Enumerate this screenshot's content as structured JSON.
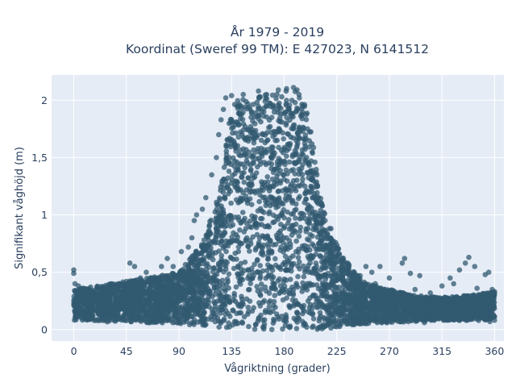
{
  "chart_data": {
    "type": "scatter",
    "title_line1": "År 1979 - 2019",
    "title_line2": "Koordinat (Sweref 99 TM): E 427023, N 6141512",
    "xlabel": "Vågriktning (grader)",
    "ylabel": "Signifikant våghöjd (m)",
    "xlim": [
      -19,
      368
    ],
    "ylim": [
      -0.1,
      2.22
    ],
    "grid": true,
    "x_ticks": [
      0,
      45,
      90,
      135,
      180,
      225,
      270,
      315,
      360
    ],
    "x_tick_labels": [
      "0",
      "45",
      "90",
      "135",
      "180",
      "225",
      "270",
      "315",
      "360"
    ],
    "y_ticks": [
      0,
      0.5,
      1,
      1.5,
      2
    ],
    "y_tick_labels": [
      "0",
      "0,5",
      "1",
      "1,5",
      "2"
    ],
    "marker_color": "#325a70",
    "plot_background": "#e5ecf6",
    "envelope": {
      "x": [
        0,
        45,
        90,
        110,
        125,
        130,
        135,
        140,
        150,
        160,
        170,
        180,
        190,
        195,
        200,
        205,
        210,
        215,
        220,
        225,
        230,
        240,
        250,
        270,
        290,
        315,
        340,
        360
      ],
      "upper": [
        0.35,
        0.42,
        0.5,
        0.75,
        1.2,
        1.6,
        1.95,
        2.02,
        2.03,
        2.05,
        2.07,
        2.08,
        2.1,
        2.05,
        1.9,
        1.6,
        1.25,
        1.0,
        0.85,
        0.75,
        0.65,
        0.5,
        0.4,
        0.35,
        0.3,
        0.28,
        0.3,
        0.33
      ],
      "lower": [
        0.08,
        0.06,
        0.05,
        0.03,
        0.02,
        0.01,
        0.01,
        0.01,
        0.0,
        0.0,
        0.0,
        0.0,
        0.0,
        0.0,
        0.0,
        0.0,
        0.0,
        0.01,
        0.01,
        0.02,
        0.03,
        0.04,
        0.05,
        0.06,
        0.07,
        0.08,
        0.08,
        0.08
      ]
    },
    "points": [
      [
        0,
        0.52
      ],
      [
        0,
        0.49
      ],
      [
        1,
        0.4
      ],
      [
        4,
        0.38
      ],
      [
        8,
        0.28
      ],
      [
        10,
        0.22
      ],
      [
        15,
        0.18
      ],
      [
        20,
        0.3
      ],
      [
        25,
        0.36
      ],
      [
        30,
        0.25
      ],
      [
        35,
        0.38
      ],
      [
        40,
        0.32
      ],
      [
        45,
        0.42
      ],
      [
        48,
        0.58
      ],
      [
        52,
        0.55
      ],
      [
        57,
        0.45
      ],
      [
        62,
        0.5
      ],
      [
        68,
        0.42
      ],
      [
        72,
        0.3
      ],
      [
        75,
        0.55
      ],
      [
        80,
        0.62
      ],
      [
        85,
        0.55
      ],
      [
        90,
        0.48
      ],
      [
        92,
        0.68
      ],
      [
        98,
        0.72
      ],
      [
        101,
        0.8
      ],
      [
        103,
        0.95
      ],
      [
        105,
        1.0
      ],
      [
        110,
        1.05
      ],
      [
        113,
        1.15
      ],
      [
        118,
        1.35
      ],
      [
        122,
        1.5
      ],
      [
        124,
        1.7
      ],
      [
        126,
        1.83
      ],
      [
        128,
        1.92
      ],
      [
        130,
        2.02
      ],
      [
        135,
        2.04
      ],
      [
        145,
        2.05
      ],
      [
        158,
        2.08
      ],
      [
        165,
        2.05
      ],
      [
        175,
        2.09
      ],
      [
        182,
        2.1
      ],
      [
        188,
        2.11
      ],
      [
        191,
        2.09
      ],
      [
        193,
        2.02
      ],
      [
        196,
        1.95
      ],
      [
        200,
        1.75
      ],
      [
        204,
        1.55
      ],
      [
        208,
        1.35
      ],
      [
        212,
        1.1
      ],
      [
        215,
        0.95
      ],
      [
        220,
        0.88
      ],
      [
        222,
        0.75
      ],
      [
        226,
        0.7
      ],
      [
        230,
        0.62
      ],
      [
        235,
        0.57
      ],
      [
        240,
        0.5
      ],
      [
        245,
        0.47
      ],
      [
        250,
        0.55
      ],
      [
        255,
        0.5
      ],
      [
        258,
        0.4
      ],
      [
        262,
        0.55
      ],
      [
        266,
        0.35
      ],
      [
        270,
        0.45
      ],
      [
        275,
        0.3
      ],
      [
        281,
        0.58
      ],
      [
        283,
        0.62
      ],
      [
        288,
        0.49
      ],
      [
        292,
        0.35
      ],
      [
        296,
        0.47
      ],
      [
        300,
        0.2
      ],
      [
        305,
        0.32
      ],
      [
        310,
        0.25
      ],
      [
        315,
        0.38
      ],
      [
        318,
        0.13
      ],
      [
        322,
        0.45
      ],
      [
        325,
        0.4
      ],
      [
        330,
        0.52
      ],
      [
        335,
        0.58
      ],
      [
        338,
        0.63
      ],
      [
        343,
        0.55
      ],
      [
        345,
        0.36
      ],
      [
        350,
        0.28
      ],
      [
        352,
        0.48
      ],
      [
        355,
        0.5
      ],
      [
        358,
        0.35
      ],
      [
        360,
        0.33
      ],
      [
        358,
        0.22
      ],
      [
        356,
        0.07
      ],
      [
        2,
        0.12
      ],
      [
        44,
        0.08
      ],
      [
        88,
        0.11
      ],
      [
        263,
        0.07
      ],
      [
        300,
        0.06
      ],
      [
        330,
        0.08
      ]
    ]
  }
}
